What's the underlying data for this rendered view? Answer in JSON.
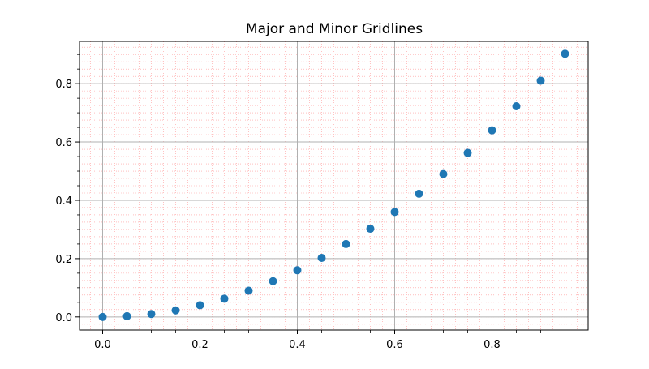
{
  "chart_data": {
    "type": "scatter",
    "title": "Major and Minor Gridlines",
    "xlabel": "",
    "ylabel": "",
    "xlim": [
      -0.0475,
      0.9975
    ],
    "ylim": [
      -0.045,
      0.945
    ],
    "x_ticks": [
      0.0,
      0.2,
      0.4,
      0.6,
      0.8
    ],
    "x_tick_labels": [
      "0.0",
      "0.2",
      "0.4",
      "0.6",
      "0.8"
    ],
    "y_ticks": [
      0.0,
      0.2,
      0.4,
      0.6,
      0.8
    ],
    "y_tick_labels": [
      "0.0",
      "0.2",
      "0.4",
      "0.6",
      "0.8"
    ],
    "grid": {
      "major": true,
      "minor": true,
      "major_color": "#b0b0b0",
      "minor_color": "#ff9999",
      "minor_style": "dotted"
    },
    "point_color": "#1f77b4",
    "series": [
      {
        "x": [
          0.0,
          0.05,
          0.1,
          0.15,
          0.2,
          0.25,
          0.3,
          0.35,
          0.4,
          0.45,
          0.5,
          0.55,
          0.6,
          0.65,
          0.7,
          0.75,
          0.8,
          0.85,
          0.9,
          0.95
        ],
        "y": [
          0.0,
          0.0025,
          0.01,
          0.0225,
          0.04,
          0.0625,
          0.09,
          0.1225,
          0.16,
          0.2025,
          0.25,
          0.3025,
          0.36,
          0.4225,
          0.49,
          0.5625,
          0.64,
          0.7225,
          0.81,
          0.9025
        ]
      }
    ]
  }
}
